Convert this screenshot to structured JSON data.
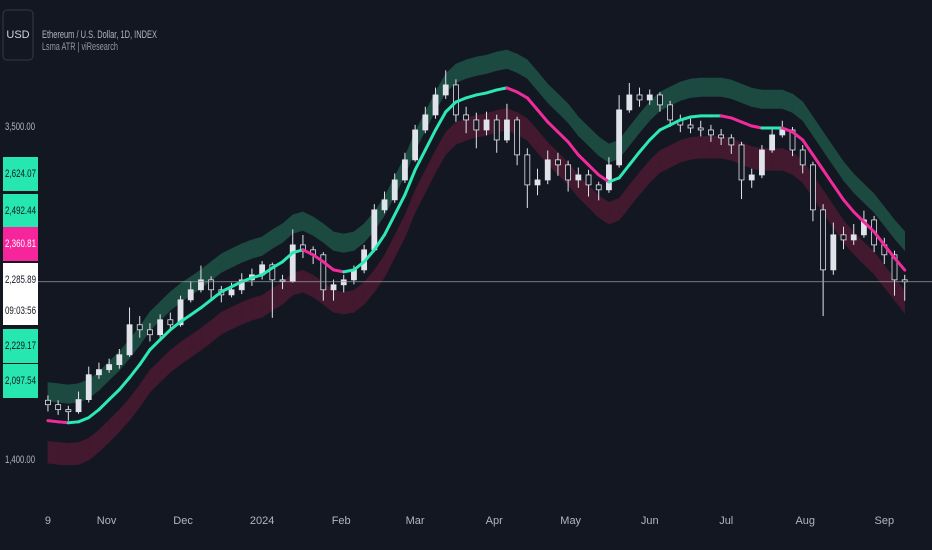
{
  "chart_data": {
    "type": "candlestick",
    "currency": "USD",
    "title": "Ethereum / U.S. Dollar, 1D, INDEX",
    "indicator": "Lsma ATR | viResearch",
    "log_scale": true,
    "grid": false,
    "candle_color": "#e1e3ea",
    "background": "#131722",
    "x": [
      0,
      4,
      8,
      12,
      16,
      20,
      24,
      28,
      32,
      36,
      40,
      44,
      48,
      52,
      56,
      60,
      64,
      68,
      72,
      76,
      80,
      84,
      88,
      92,
      96,
      100,
      104,
      108,
      112,
      116,
      120,
      124,
      128,
      132,
      136,
      140,
      144,
      148,
      152,
      156,
      160,
      164,
      168,
      172,
      176,
      180,
      184,
      188,
      192,
      196,
      200,
      204,
      208,
      212,
      216,
      220,
      224,
      228,
      232,
      236,
      240,
      244,
      248,
      252,
      256,
      260,
      264,
      268,
      272,
      276,
      280,
      284,
      288,
      292,
      296,
      300,
      304,
      308,
      312,
      316,
      320,
      324,
      328,
      332,
      336
    ],
    "ohlc": [
      [
        1650,
        1672,
        1600,
        1630
      ],
      [
        1630,
        1650,
        1585,
        1608
      ],
      [
        1608,
        1625,
        1560,
        1599
      ],
      [
        1599,
        1690,
        1590,
        1653
      ],
      [
        1653,
        1810,
        1640,
        1770
      ],
      [
        1770,
        1830,
        1750,
        1795
      ],
      [
        1795,
        1850,
        1780,
        1820
      ],
      [
        1820,
        1900,
        1800,
        1870
      ],
      [
        1870,
        2130,
        1860,
        2031
      ],
      [
        2031,
        2080,
        1960,
        2003
      ],
      [
        2003,
        2040,
        1940,
        1976
      ],
      [
        1976,
        2090,
        1960,
        2059
      ],
      [
        2059,
        2100,
        2000,
        2031
      ],
      [
        2031,
        2200,
        2020,
        2175
      ],
      [
        2175,
        2290,
        2160,
        2236
      ],
      [
        2236,
        2390,
        2220,
        2298
      ],
      [
        2298,
        2320,
        2180,
        2236
      ],
      [
        2236,
        2260,
        2160,
        2205
      ],
      [
        2205,
        2280,
        2190,
        2236
      ],
      [
        2236,
        2340,
        2210,
        2298
      ],
      [
        2298,
        2370,
        2260,
        2330
      ],
      [
        2330,
        2420,
        2300,
        2395
      ],
      [
        2395,
        2410,
        2070,
        2298
      ],
      [
        2298,
        2330,
        2240,
        2290
      ],
      [
        2290,
        2640,
        2280,
        2530
      ],
      [
        2530,
        2600,
        2440,
        2496
      ],
      [
        2496,
        2520,
        2400,
        2462
      ],
      [
        2462,
        2480,
        2170,
        2236
      ],
      [
        2236,
        2300,
        2170,
        2267
      ],
      [
        2267,
        2330,
        2220,
        2298
      ],
      [
        2298,
        2390,
        2270,
        2362
      ],
      [
        2362,
        2530,
        2340,
        2496
      ],
      [
        2496,
        2830,
        2480,
        2786
      ],
      [
        2786,
        2930,
        2760,
        2864
      ],
      [
        2864,
        3080,
        2840,
        3025
      ],
      [
        3025,
        3260,
        3000,
        3197
      ],
      [
        3197,
        3520,
        3180,
        3471
      ],
      [
        3471,
        3700,
        3440,
        3618
      ],
      [
        3618,
        3900,
        3580,
        3822
      ],
      [
        3822,
        4090,
        3780,
        3929
      ],
      [
        3929,
        3990,
        3550,
        3618
      ],
      [
        3618,
        3700,
        3440,
        3568
      ],
      [
        3568,
        3640,
        3300,
        3471
      ],
      [
        3471,
        3650,
        3420,
        3568
      ],
      [
        3568,
        3620,
        3260,
        3377
      ],
      [
        3377,
        3730,
        3350,
        3568
      ],
      [
        3568,
        3600,
        3150,
        3241
      ],
      [
        3241,
        3300,
        2800,
        2984
      ],
      [
        2984,
        3120,
        2900,
        3025
      ],
      [
        3025,
        3280,
        2990,
        3197
      ],
      [
        3197,
        3260,
        3060,
        3153
      ],
      [
        3153,
        3190,
        2930,
        3025
      ],
      [
        3025,
        3130,
        2960,
        3067
      ],
      [
        3067,
        3110,
        2890,
        2984
      ],
      [
        2984,
        3010,
        2860,
        2944
      ],
      [
        2944,
        3220,
        2920,
        3153
      ],
      [
        3153,
        3820,
        3130,
        3668
      ],
      [
        3668,
        3950,
        3640,
        3822
      ],
      [
        3822,
        3900,
        3700,
        3770
      ],
      [
        3770,
        3880,
        3720,
        3822
      ],
      [
        3822,
        3850,
        3650,
        3719
      ],
      [
        3719,
        3760,
        3500,
        3568
      ],
      [
        3568,
        3620,
        3450,
        3519
      ],
      [
        3519,
        3580,
        3440,
        3490
      ],
      [
        3490,
        3560,
        3410,
        3471
      ],
      [
        3471,
        3520,
        3360,
        3424
      ],
      [
        3424,
        3480,
        3330,
        3396
      ],
      [
        3396,
        3430,
        3250,
        3331
      ],
      [
        3331,
        3360,
        2870,
        3025
      ],
      [
        3025,
        3120,
        2960,
        3067
      ],
      [
        3067,
        3330,
        3040,
        3285
      ],
      [
        3285,
        3480,
        3260,
        3424
      ],
      [
        3424,
        3560,
        3400,
        3471
      ],
      [
        3471,
        3500,
        3230,
        3285
      ],
      [
        3285,
        3330,
        3080,
        3153
      ],
      [
        3153,
        3180,
        2700,
        2786
      ],
      [
        2786,
        2830,
        2080,
        2362
      ],
      [
        2362,
        2690,
        2330,
        2601
      ],
      [
        2601,
        2660,
        2500,
        2565
      ],
      [
        2565,
        2680,
        2530,
        2601
      ],
      [
        2601,
        2780,
        2580,
        2710
      ],
      [
        2710,
        2740,
        2480,
        2530
      ],
      [
        2530,
        2580,
        2400,
        2462
      ],
      [
        2462,
        2490,
        2200,
        2298
      ],
      [
        2298,
        2330,
        2170,
        2285.89
      ]
    ],
    "lsma": {
      "up_color": "#2ce8b5",
      "down_color": "#f22b9d",
      "values": [
        1560,
        1555,
        1551,
        1555,
        1573,
        1608,
        1653,
        1699,
        1756,
        1820,
        1896,
        1949,
        2003,
        2048,
        2087,
        2128,
        2175,
        2224,
        2255,
        2286,
        2311,
        2330,
        2375,
        2415,
        2476,
        2496,
        2462,
        2415,
        2362,
        2349,
        2362,
        2415,
        2496,
        2601,
        2748,
        2904,
        3110,
        3285,
        3471,
        3648,
        3749,
        3791,
        3822,
        3843,
        3875,
        3897,
        3853,
        3791,
        3668,
        3548,
        3452,
        3358,
        3241,
        3153,
        3067,
        3009,
        3042,
        3153,
        3267,
        3377,
        3471,
        3519,
        3568,
        3597,
        3608,
        3608,
        3608,
        3588,
        3548,
        3509,
        3490,
        3490,
        3490,
        3452,
        3377,
        3241,
        3110,
        2984,
        2864,
        2771,
        2695,
        2623,
        2530,
        2441,
        2360.81
      ]
    },
    "atr": {
      "upper_color": "#1c4a41",
      "lower_color": "#43192f",
      "values": [
        86,
        86,
        85,
        86,
        87,
        88,
        91,
        93,
        97,
        100,
        104,
        107,
        110,
        113,
        115,
        117,
        120,
        122,
        124,
        126,
        127,
        128,
        131,
        133,
        136,
        137,
        135,
        133,
        130,
        129,
        130,
        133,
        137,
        143,
        151,
        160,
        171,
        181,
        191,
        201,
        206,
        209,
        210,
        211,
        213,
        214,
        212,
        209,
        202,
        195,
        190,
        185,
        178,
        173,
        169,
        165,
        167,
        173,
        180,
        186,
        191,
        194,
        196,
        198,
        198,
        198,
        198,
        197,
        195,
        193,
        192,
        192,
        192,
        190,
        186,
        178,
        171,
        164,
        158,
        152,
        148,
        144,
        139,
        134,
        131.63
      ]
    },
    "xlim": [
      -18.8,
      346.7
    ],
    "ylim": [
      1254,
      4963
    ],
    "xticks": [
      {
        "value": 0,
        "label": "9"
      },
      {
        "value": 23,
        "label": "Nov"
      },
      {
        "value": 53,
        "label": "Dec"
      },
      {
        "value": 84,
        "label": "2024"
      },
      {
        "value": 115,
        "label": "Feb"
      },
      {
        "value": 144,
        "label": "Mar"
      },
      {
        "value": 175,
        "label": "Apr"
      },
      {
        "value": 205,
        "label": "May"
      },
      {
        "value": 236,
        "label": "Jun"
      },
      {
        "value": 266,
        "label": "Jul"
      },
      {
        "value": 297,
        "label": "Aug"
      },
      {
        "value": 328,
        "label": "Sep"
      }
    ],
    "yticks": [
      {
        "value": 3500,
        "label": "3,500.00"
      },
      {
        "value": 1400,
        "label": "1,400.00"
      }
    ],
    "price_tags": {
      "values": [
        2624.07,
        2492.44,
        2360.81,
        2285.89,
        2229.17,
        2097.54
      ],
      "value_labels": [
        "2,624.07",
        "2,492.44",
        "2,360.81",
        "2,285.89",
        "2,229.17",
        "2,097.54"
      ],
      "colors": [
        "#26e7b0",
        "#26e7b0",
        "#f7259b",
        "#ffffff",
        "#26e7b0",
        "#26e7b0"
      ],
      "text_colors": [
        "#131722",
        "#131722",
        "#ffffff",
        "#131722",
        "#131722",
        "#131722"
      ]
    },
    "countdown": "09:03:56"
  }
}
